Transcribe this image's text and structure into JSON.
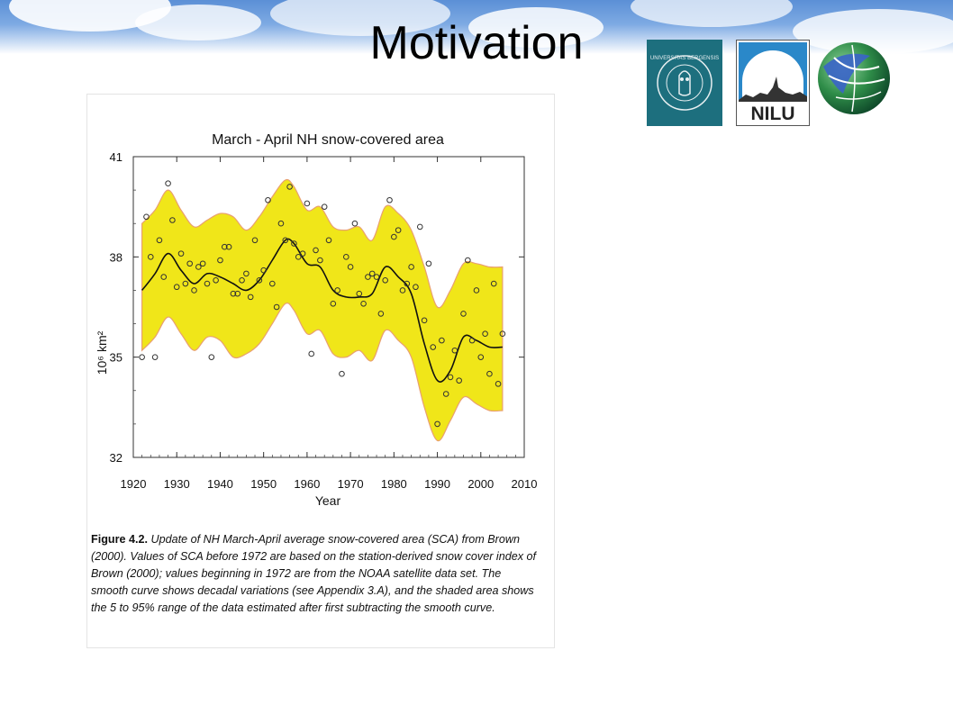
{
  "slide": {
    "title": "Motivation"
  },
  "logos": {
    "uib_text": "UNIVERSITAS BERGENSIS",
    "nilu_text": "NILU"
  },
  "figure": {
    "caption_label": "Figure 4.2.",
    "caption_text": "Update of NH March-April average snow-covered area (SCA) from Brown (2000). Values of SCA before 1972 are based on the station-derived snow cover index of Brown (2000); values beginning in 1972 are from the NOAA satellite data set.  The smooth curve shows decadal variations (see Appendix 3.A), and the shaded area shows the 5 to 95% range of the data estimated after first subtracting the smooth curve."
  },
  "colors": {
    "band_fill": "#f0e619",
    "band_edge": "#e8a070",
    "curve": "#111111",
    "points": "#333333",
    "uib_teal": "#1d6f7e"
  },
  "chart_data": {
    "type": "line",
    "title": "March - April NH snow-covered area",
    "xlabel": "Year",
    "ylabel": "10⁶ km²",
    "xlim": [
      1920,
      2010
    ],
    "ylim": [
      32,
      41
    ],
    "xticks": [
      1920,
      1930,
      1940,
      1950,
      1960,
      1970,
      1980,
      1990,
      2000,
      2010
    ],
    "yticks": [
      32,
      35,
      38,
      41
    ],
    "grid": false,
    "smooth_curve": {
      "x": [
        1922,
        1925,
        1928,
        1931,
        1934,
        1937,
        1940,
        1943,
        1946,
        1949,
        1952,
        1955,
        1957,
        1960,
        1963,
        1966,
        1969,
        1972,
        1975,
        1978,
        1981,
        1984,
        1987,
        1990,
        1993,
        1996,
        1999,
        2002,
        2005
      ],
      "y": [
        37.0,
        37.5,
        38.1,
        37.6,
        37.2,
        37.5,
        37.4,
        37.2,
        37.0,
        37.3,
        37.9,
        38.5,
        38.4,
        37.8,
        37.7,
        37.0,
        36.8,
        36.8,
        36.9,
        37.7,
        37.4,
        36.9,
        35.4,
        34.3,
        34.6,
        35.6,
        35.5,
        35.3,
        35.3
      ]
    },
    "band_upper": {
      "x": [
        1922,
        1925,
        1928,
        1931,
        1934,
        1937,
        1940,
        1943,
        1946,
        1949,
        1952,
        1955,
        1957,
        1960,
        1963,
        1966,
        1969,
        1972,
        1975,
        1978,
        1981,
        1984,
        1987,
        1990,
        1993,
        1996,
        1999,
        2002,
        2005
      ],
      "y": [
        39.0,
        39.4,
        40.0,
        39.4,
        38.9,
        39.1,
        39.3,
        39.2,
        38.8,
        39.2,
        39.8,
        40.3,
        40.1,
        39.4,
        39.5,
        38.9,
        38.8,
        38.9,
        38.5,
        39.5,
        39.3,
        38.8,
        37.7,
        36.5,
        37.0,
        37.8,
        37.8,
        37.7,
        37.7
      ]
    },
    "band_lower": {
      "x": [
        1922,
        1925,
        1928,
        1931,
        1934,
        1937,
        1940,
        1943,
        1946,
        1949,
        1952,
        1955,
        1957,
        1960,
        1963,
        1966,
        1969,
        1972,
        1975,
        1978,
        1981,
        1984,
        1987,
        1990,
        1993,
        1996,
        1999,
        2002,
        2005
      ],
      "y": [
        35.2,
        35.6,
        36.2,
        35.7,
        35.2,
        35.6,
        35.5,
        35.0,
        35.1,
        35.4,
        36.0,
        36.6,
        36.4,
        35.7,
        35.8,
        35.1,
        35.0,
        35.2,
        34.9,
        35.8,
        35.5,
        35.0,
        33.5,
        32.5,
        33.1,
        33.8,
        33.6,
        33.4,
        33.4
      ]
    },
    "observations": {
      "x": [
        1922,
        1923,
        1924,
        1925,
        1926,
        1927,
        1928,
        1929,
        1930,
        1931,
        1932,
        1933,
        1934,
        1935,
        1936,
        1937,
        1938,
        1939,
        1940,
        1941,
        1942,
        1943,
        1944,
        1945,
        1946,
        1947,
        1948,
        1949,
        1950,
        1951,
        1952,
        1953,
        1954,
        1955,
        1956,
        1957,
        1958,
        1959,
        1960,
        1961,
        1962,
        1963,
        1964,
        1965,
        1966,
        1967,
        1968,
        1969,
        1970,
        1971,
        1972,
        1973,
        1974,
        1975,
        1976,
        1977,
        1978,
        1979,
        1980,
        1981,
        1982,
        1983,
        1984,
        1985,
        1986,
        1987,
        1988,
        1989,
        1990,
        1991,
        1992,
        1993,
        1994,
        1995,
        1996,
        1997,
        1998,
        1999,
        2000,
        2001,
        2002,
        2003,
        2004,
        2005
      ],
      "y": [
        35.0,
        39.2,
        38.0,
        35.0,
        38.5,
        37.4,
        40.2,
        39.1,
        37.1,
        38.1,
        37.2,
        37.8,
        37.0,
        37.7,
        37.8,
        37.2,
        35.0,
        37.3,
        37.9,
        38.3,
        38.3,
        36.9,
        36.9,
        37.3,
        37.5,
        36.8,
        38.5,
        37.3,
        37.6,
        39.7,
        37.2,
        36.5,
        39.0,
        38.5,
        40.1,
        38.4,
        38.0,
        38.1,
        39.6,
        35.1,
        38.2,
        37.9,
        39.5,
        38.5,
        36.6,
        37.0,
        34.5,
        38.0,
        37.7,
        39.0,
        36.9,
        36.6,
        37.4,
        37.5,
        37.4,
        36.3,
        37.3,
        39.7,
        38.6,
        38.8,
        37.0,
        37.2,
        37.7,
        37.1,
        38.9,
        36.1,
        37.8,
        35.3,
        33.0,
        35.5,
        33.9,
        34.4,
        35.2,
        34.3,
        36.3,
        37.9,
        35.5,
        37.0,
        35.0,
        35.7,
        34.5,
        37.2,
        34.2,
        35.7
      ]
    }
  }
}
